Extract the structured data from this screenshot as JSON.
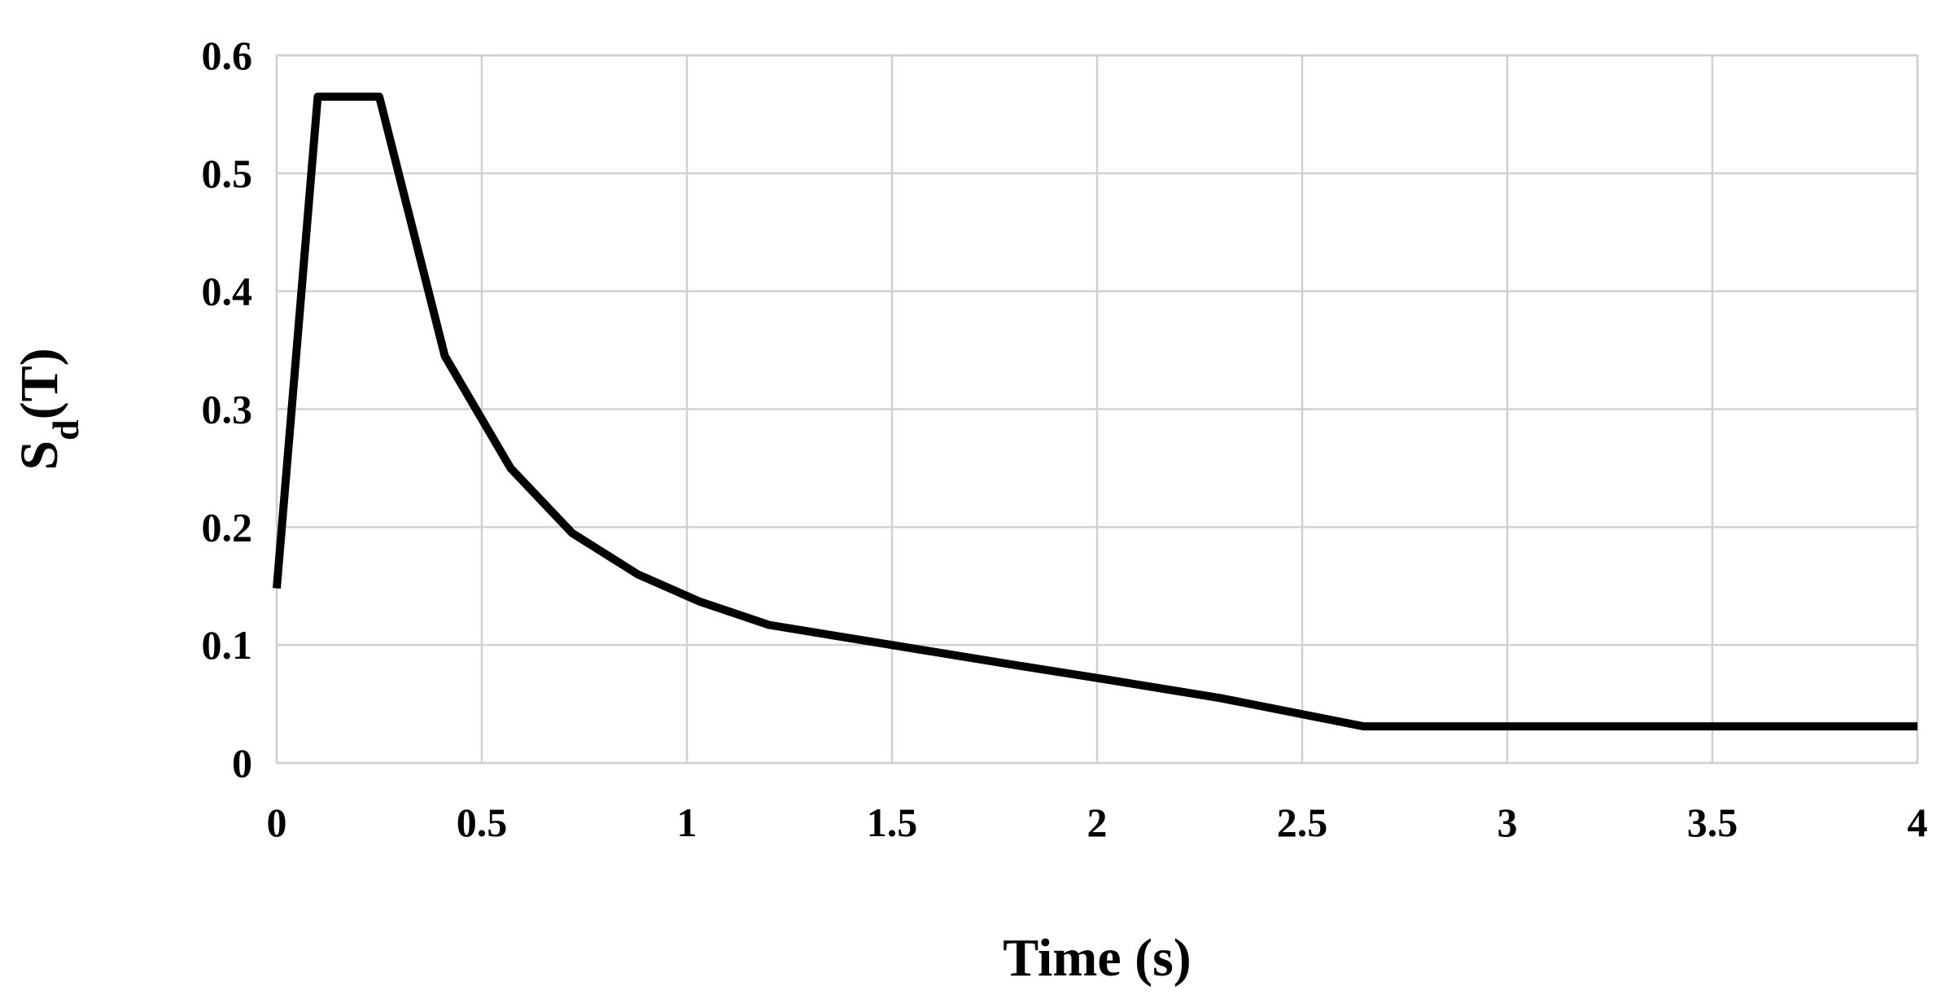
{
  "chart_data": {
    "type": "line",
    "title": "",
    "xlabel": "Time (s)",
    "ylabel_main": "S",
    "ylabel_sub": "d",
    "ylabel_tail": "(T)",
    "xlim": [
      0,
      4
    ],
    "ylim": [
      0,
      0.6
    ],
    "x_ticks": [
      "0",
      "0.5",
      "1",
      "1.5",
      "2",
      "2.5",
      "3",
      "3.5",
      "4"
    ],
    "y_ticks": [
      "0",
      "0.1",
      "0.2",
      "0.3",
      "0.4",
      "0.5",
      "0.6"
    ],
    "grid": true,
    "legend": "none",
    "series": [
      {
        "color": "#000000",
        "x": [
          0.0,
          0.1,
          0.25,
          0.41,
          0.57,
          0.72,
          0.88,
          1.03,
          1.2,
          1.5,
          1.8,
          2.0,
          2.3,
          2.65,
          3.0,
          3.5,
          4.0
        ],
        "y": [
          0.148,
          0.565,
          0.565,
          0.345,
          0.25,
          0.195,
          0.16,
          0.137,
          0.117,
          0.1,
          0.083,
          0.072,
          0.055,
          0.031,
          0.031,
          0.031,
          0.031
        ]
      }
    ]
  }
}
